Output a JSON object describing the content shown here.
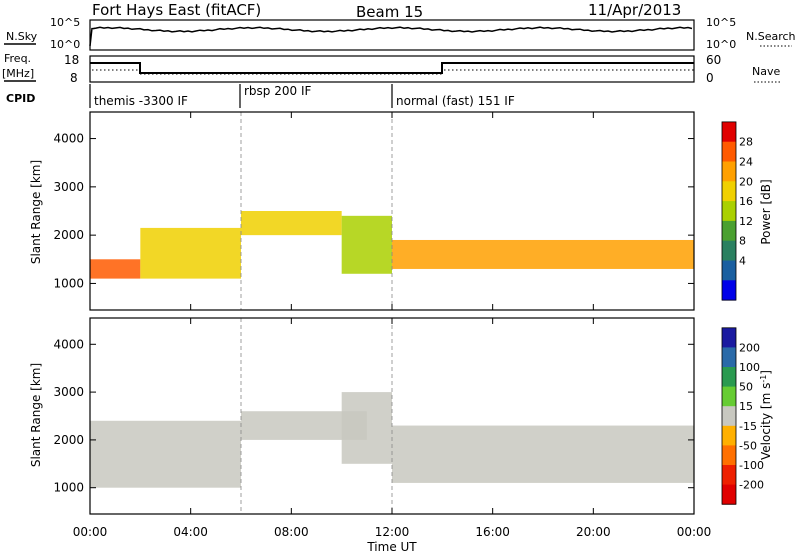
{
  "header": {
    "station": "Fort Hays East (fitACF)",
    "beam": "Beam 15",
    "date": "11/Apr/2013"
  },
  "panels": {
    "nsky": {
      "label": "N.Sky",
      "right_label": "N.Search",
      "ytick_top": "10^5",
      "ytick_bottom": "10^0",
      "ytick_top_right": "10^5",
      "ytick_bottom_right": "10^0"
    },
    "freq": {
      "label_top": "Freq.",
      "label_unit": "[MHz]",
      "right_label": "Nave",
      "ytick_top": "18",
      "ytick_bottom": "8",
      "ytick_top_right": "60",
      "ytick_bottom_right": "0"
    },
    "cpid": {
      "label": "CPID",
      "modes": [
        {
          "name": "themis -3300 IF",
          "start_hour": 0
        },
        {
          "name": "rbsp 200 IF",
          "start_hour": 6
        },
        {
          "name": "normal (fast) 151 IF",
          "start_hour": 12
        }
      ]
    }
  },
  "chart_data": [
    {
      "type": "heatmap",
      "name": "power",
      "ylabel": "Slant Range [km]",
      "xlabel": "",
      "xlim": [
        0,
        24
      ],
      "ylim": [
        450,
        4550
      ],
      "yticks": [
        "1000",
        "2000",
        "3000",
        "4000"
      ],
      "colorbar": {
        "label": "Power [dB]",
        "ticks": [
          "28",
          "24",
          "20",
          "16",
          "12",
          "8",
          "4"
        ],
        "colors": [
          "#e00000",
          "#ff5a00",
          "#ffa000",
          "#f0d000",
          "#aad000",
          "#4aa030",
          "#2a8060",
          "#1a5fa0",
          "#0000e8"
        ],
        "range": [
          0,
          32
        ]
      },
      "bands": [
        {
          "start": 0,
          "end": 2,
          "bottom": 1100,
          "top": 1500,
          "value": 28
        },
        {
          "start": 2,
          "end": 6,
          "bottom": 1100,
          "top": 2150,
          "value": 20
        },
        {
          "start": 6,
          "end": 10,
          "bottom": 2000,
          "top": 2500,
          "value": 20
        },
        {
          "start": 10,
          "end": 12,
          "bottom": 1200,
          "top": 2400,
          "value": 18
        },
        {
          "start": 12,
          "end": 24,
          "bottom": 1300,
          "top": 1900,
          "value": 26
        }
      ]
    },
    {
      "type": "heatmap",
      "name": "velocity",
      "ylabel": "Slant Range [km]",
      "xlabel": "Time UT",
      "xlim": [
        0,
        24
      ],
      "ylim": [
        450,
        4550
      ],
      "xticks": [
        "00:00",
        "04:00",
        "08:00",
        "12:00",
        "16:00",
        "20:00",
        "00:00"
      ],
      "yticks": [
        "1000",
        "2000",
        "3000",
        "4000"
      ],
      "colorbar": {
        "label_text": "Velocity [m s",
        "label_sup": "-1",
        "label_end": "]",
        "ticks": [
          "200",
          "100",
          "50",
          "15",
          "-15",
          "-50",
          "-100",
          "-200"
        ],
        "colors": [
          "#1a1aa0",
          "#2a6aa8",
          "#2a9a50",
          "#66cc33",
          "#c8c8c0",
          "#ffb000",
          "#ff7000",
          "#ee2000",
          "#e00000"
        ],
        "range": [
          -250,
          250
        ]
      },
      "bands": [
        {
          "start": 0,
          "end": 6,
          "bottom": 1000,
          "top": 2400,
          "value": 0
        },
        {
          "start": 6,
          "end": 11,
          "bottom": 2000,
          "top": 2600,
          "value": 0
        },
        {
          "start": 10,
          "end": 12,
          "bottom": 1500,
          "top": 3000,
          "value": 30
        },
        {
          "start": 12,
          "end": 24,
          "bottom": 1100,
          "top": 2300,
          "value": 0
        }
      ]
    }
  ]
}
